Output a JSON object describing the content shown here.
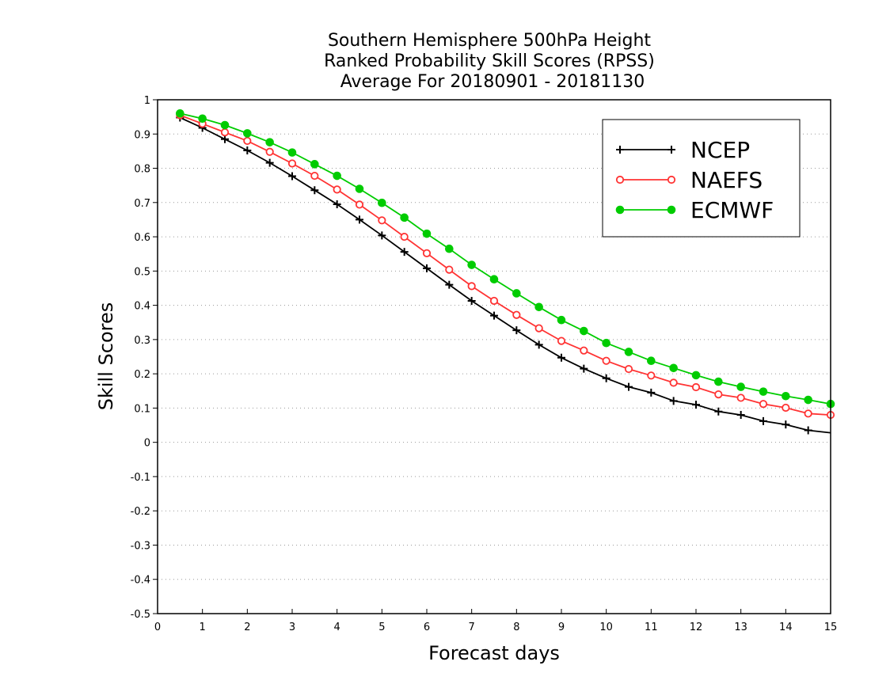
{
  "chart_data": {
    "type": "line",
    "title": [
      "Southern Hemisphere 500hPa Height",
      "Ranked Probability Skill Scores (RPSS)",
      "Average For 20180901 - 20181130"
    ],
    "xlabel": "Forecast days",
    "ylabel": "Skill Scores",
    "xlim": [
      0,
      15
    ],
    "ylim": [
      -0.5,
      1
    ],
    "xticks": [
      0,
      1,
      2,
      3,
      4,
      5,
      6,
      7,
      8,
      9,
      10,
      11,
      12,
      13,
      14,
      15
    ],
    "yticks": [
      -0.5,
      -0.4,
      -0.3,
      -0.2,
      -0.1,
      0,
      0.1,
      0.2,
      0.3,
      0.4,
      0.5,
      0.6,
      0.7,
      0.8,
      0.9,
      1
    ],
    "ytick_labels": [
      "-0.5",
      "-0.4",
      "-0.3",
      "-0.2",
      "-0.1",
      "0",
      "0.1",
      "0.2",
      "0.3",
      "0.4",
      "0.5",
      "0.6",
      "0.7",
      "0.8",
      "0.9",
      "1"
    ],
    "grid": "horizontal dotted",
    "legend_position": "top-right",
    "x": [
      0.5,
      1,
      1.5,
      2,
      2.5,
      3,
      3.5,
      4,
      4.5,
      5,
      5.5,
      6,
      6.5,
      7,
      7.5,
      8,
      8.5,
      9,
      9.5,
      10,
      10.5,
      11,
      11.5,
      12,
      12.5,
      13,
      13.5,
      14,
      14.5,
      15
    ],
    "series": [
      {
        "name": "NCEP",
        "color": "#000000",
        "marker": "plus",
        "values": [
          0.948,
          0.918,
          0.885,
          0.852,
          0.816,
          0.777,
          0.736,
          0.695,
          0.65,
          0.604,
          0.556,
          0.508,
          0.46,
          0.413,
          0.37,
          0.327,
          0.285,
          0.247,
          0.215,
          0.187,
          0.162,
          0.145,
          0.121,
          0.11,
          0.09,
          0.08,
          0.062,
          0.052,
          0.035,
          0.028
        ]
      },
      {
        "name": "NAEFS",
        "color": "#ff3333",
        "marker": "open-circle",
        "values": [
          0.955,
          0.93,
          0.905,
          0.88,
          0.848,
          0.814,
          0.778,
          0.738,
          0.694,
          0.648,
          0.6,
          0.552,
          0.504,
          0.456,
          0.413,
          0.372,
          0.333,
          0.296,
          0.268,
          0.238,
          0.214,
          0.195,
          0.174,
          0.161,
          0.14,
          0.13,
          0.112,
          0.101,
          0.084,
          0.08
        ]
      },
      {
        "name": "ECMWF",
        "color": "#00cc00",
        "marker": "filled-circle",
        "values": [
          0.96,
          0.945,
          0.926,
          0.902,
          0.876,
          0.846,
          0.812,
          0.778,
          0.74,
          0.699,
          0.656,
          0.609,
          0.565,
          0.518,
          0.476,
          0.435,
          0.395,
          0.357,
          0.325,
          0.29,
          0.264,
          0.238,
          0.217,
          0.196,
          0.177,
          0.162,
          0.148,
          0.135,
          0.124,
          0.112
        ]
      }
    ]
  }
}
